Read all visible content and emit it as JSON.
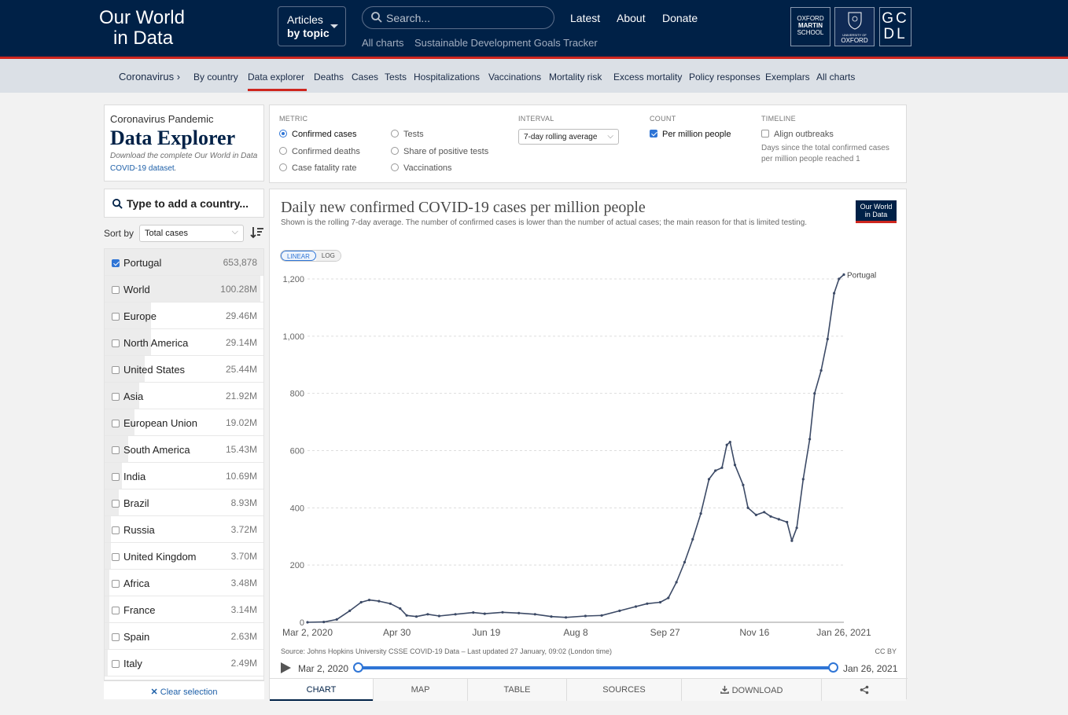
{
  "header": {
    "logo_line1": "Our World",
    "logo_line2": "in Data",
    "articles_line1": "Articles",
    "articles_line2": "by topic",
    "search_placeholder": "Search...",
    "links": [
      "Latest",
      "About",
      "Donate"
    ],
    "sub_links": [
      "All charts",
      "Sustainable Development Goals Tracker"
    ],
    "oms_lines": [
      "OXFORD",
      "MARTIN",
      "SCHOOL"
    ],
    "oxford_lines": [
      "UNIVERSITY OF",
      "OXFORD"
    ],
    "gcdl_lines": [
      "GC",
      "DL"
    ],
    "accent_color": "#ce261e",
    "bg_color": "#002147"
  },
  "subnav": {
    "items": [
      "Coronavirus ›",
      "By country",
      "Data explorer",
      "Deaths",
      "Cases",
      "Tests",
      "Hospitalizations",
      "Vaccinations",
      "Mortality risk",
      "Excess mortality",
      "Policy responses",
      "Exemplars",
      "All charts"
    ],
    "active": "Data explorer"
  },
  "intro": {
    "kicker": "Coronavirus Pandemic",
    "title": "Data Explorer",
    "desc_prefix": "Download the complete Our World in Data ",
    "desc_link": "COVID-19 dataset",
    "desc_suffix": "."
  },
  "controls": {
    "metric_title": "Metric",
    "metrics": [
      {
        "label": "Confirmed cases",
        "selected": true
      },
      {
        "label": "Confirmed deaths",
        "selected": false
      },
      {
        "label": "Case fatality rate",
        "selected": false
      },
      {
        "label": "Tests",
        "selected": false
      },
      {
        "label": "Share of positive tests",
        "selected": false
      },
      {
        "label": "Vaccinations",
        "selected": false
      }
    ],
    "interval_title": "Interval",
    "interval_value": "7-day rolling average",
    "count_title": "Count",
    "count_option": "Per million people",
    "timeline_title": "Timeline",
    "timeline_option": "Align outbreaks",
    "timeline_note": "Days since the total confirmed cases per million people reached 1"
  },
  "country_picker": {
    "search_placeholder": "Type to add a country...",
    "sort_label": "Sort by",
    "sort_value": "Total cases",
    "clear_label": "Clear selection",
    "rows": [
      {
        "name": "Portugal",
        "value": "653,878",
        "checked": true,
        "share": 1.0
      },
      {
        "name": "World",
        "value": "100.28M",
        "checked": false,
        "share": 0.98
      },
      {
        "name": "Europe",
        "value": "29.46M",
        "checked": false,
        "share": 0.29
      },
      {
        "name": "North America",
        "value": "29.14M",
        "checked": false,
        "share": 0.29
      },
      {
        "name": "United States",
        "value": "25.44M",
        "checked": false,
        "share": 0.25
      },
      {
        "name": "Asia",
        "value": "21.92M",
        "checked": false,
        "share": 0.22
      },
      {
        "name": "European Union",
        "value": "19.02M",
        "checked": false,
        "share": 0.19
      },
      {
        "name": "South America",
        "value": "15.43M",
        "checked": false,
        "share": 0.15
      },
      {
        "name": "India",
        "value": "10.69M",
        "checked": false,
        "share": 0.11
      },
      {
        "name": "Brazil",
        "value": "8.93M",
        "checked": false,
        "share": 0.09
      },
      {
        "name": "Russia",
        "value": "3.72M",
        "checked": false,
        "share": 0.04
      },
      {
        "name": "United Kingdom",
        "value": "3.70M",
        "checked": false,
        "share": 0.04
      },
      {
        "name": "Africa",
        "value": "3.48M",
        "checked": false,
        "share": 0.03
      },
      {
        "name": "France",
        "value": "3.14M",
        "checked": false,
        "share": 0.03
      },
      {
        "name": "Spain",
        "value": "2.63M",
        "checked": false,
        "share": 0.03
      },
      {
        "name": "Italy",
        "value": "2.49M",
        "checked": false,
        "share": 0.02
      }
    ]
  },
  "chart_card": {
    "logo_line1": "Our World",
    "logo_line2": "in Data",
    "scale_linear": "LINEAR",
    "scale_log": "LOG",
    "source": "Source: Johns Hopkins University CSSE COVID-19 Data – Last updated 27 January, 09:02 (London time)",
    "license": "CC BY",
    "timeline_start": "Mar 2, 2020",
    "timeline_end": "Jan 26, 2021",
    "tabs": [
      "CHART",
      "MAP",
      "TABLE",
      "SOURCES",
      "DOWNLOAD",
      "share-icon"
    ],
    "active_tab": "CHART"
  },
  "chart_data": {
    "type": "line",
    "title": "Daily new confirmed COVID-19 cases per million people",
    "subtitle": "Shown is the rolling 7-day average. The number of confirmed cases is lower than the number of actual cases; the main reason for that is limited testing.",
    "xlabel": "",
    "ylabel": "",
    "x_ticks": [
      "Mar 2, 2020",
      "Apr 30",
      "Jun 19",
      "Aug 8",
      "Sep 27",
      "Nov 16",
      "Jan 26, 2021"
    ],
    "y_ticks": [
      0,
      200,
      400,
      600,
      800,
      1000,
      1200
    ],
    "ylim": [
      0,
      1200
    ],
    "xlim": [
      "2020-03-02",
      "2021-01-26"
    ],
    "grid": "horizontal dashed",
    "line_color": "#3c4a66",
    "series": [
      {
        "name": "Portugal",
        "points": [
          [
            "2020-03-02",
            0
          ],
          [
            "2020-03-12",
            1
          ],
          [
            "2020-03-20",
            10
          ],
          [
            "2020-03-28",
            40
          ],
          [
            "2020-04-04",
            70
          ],
          [
            "2020-04-09",
            78
          ],
          [
            "2020-04-15",
            74
          ],
          [
            "2020-04-22",
            65
          ],
          [
            "2020-04-28",
            48
          ],
          [
            "2020-05-02",
            24
          ],
          [
            "2020-05-08",
            20
          ],
          [
            "2020-05-15",
            28
          ],
          [
            "2020-05-22",
            22
          ],
          [
            "2020-06-01",
            28
          ],
          [
            "2020-06-12",
            34
          ],
          [
            "2020-06-19",
            30
          ],
          [
            "2020-06-30",
            35
          ],
          [
            "2020-07-10",
            32
          ],
          [
            "2020-07-20",
            28
          ],
          [
            "2020-07-30",
            20
          ],
          [
            "2020-08-08",
            17
          ],
          [
            "2020-08-20",
            22
          ],
          [
            "2020-08-30",
            24
          ],
          [
            "2020-09-10",
            40
          ],
          [
            "2020-09-20",
            55
          ],
          [
            "2020-09-27",
            65
          ],
          [
            "2020-10-05",
            70
          ],
          [
            "2020-10-10",
            85
          ],
          [
            "2020-10-15",
            140
          ],
          [
            "2020-10-20",
            210
          ],
          [
            "2020-10-25",
            290
          ],
          [
            "2020-10-30",
            380
          ],
          [
            "2020-11-04",
            500
          ],
          [
            "2020-11-08",
            530
          ],
          [
            "2020-11-12",
            540
          ],
          [
            "2020-11-15",
            620
          ],
          [
            "2020-11-17",
            630
          ],
          [
            "2020-11-20",
            550
          ],
          [
            "2020-11-25",
            480
          ],
          [
            "2020-11-28",
            400
          ],
          [
            "2020-12-03",
            375
          ],
          [
            "2020-12-08",
            385
          ],
          [
            "2020-12-12",
            370
          ],
          [
            "2020-12-17",
            360
          ],
          [
            "2020-12-22",
            350
          ],
          [
            "2020-12-25",
            285
          ],
          [
            "2020-12-28",
            330
          ],
          [
            "2021-01-01",
            500
          ],
          [
            "2021-01-05",
            640
          ],
          [
            "2021-01-08",
            800
          ],
          [
            "2021-01-12",
            880
          ],
          [
            "2021-01-16",
            990
          ],
          [
            "2021-01-20",
            1150
          ],
          [
            "2021-01-23",
            1200
          ],
          [
            "2021-01-26",
            1215
          ]
        ]
      }
    ]
  }
}
